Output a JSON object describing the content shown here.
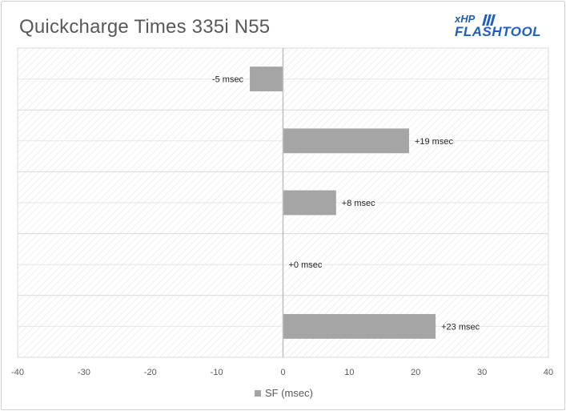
{
  "header": {
    "title": "Quickcharge Times 335i N55",
    "logo_top": "xHP",
    "logo_main": "FLASHTOOL",
    "logo_color": "#1f5fbf"
  },
  "chart_data": {
    "type": "bar",
    "orientation": "horizontal",
    "title": "Quickcharge Times 335i N55",
    "categories": [
      "",
      "",
      "",
      "",
      ""
    ],
    "series": [
      {
        "name": "SF (msec)",
        "color": "#a5a5a5",
        "values": [
          -5,
          19,
          8,
          0,
          23
        ],
        "labels": [
          "-5 msec",
          "+19 msec",
          "+8 msec",
          "+0 msec",
          "+23 msec"
        ]
      }
    ],
    "xlim": [
      -40,
      40
    ],
    "xticks": [
      -40,
      -30,
      -20,
      -10,
      0,
      10,
      20,
      30,
      40
    ],
    "grid": true,
    "legend_position": "bottom"
  },
  "legend": {
    "label": "SF (msec)"
  }
}
